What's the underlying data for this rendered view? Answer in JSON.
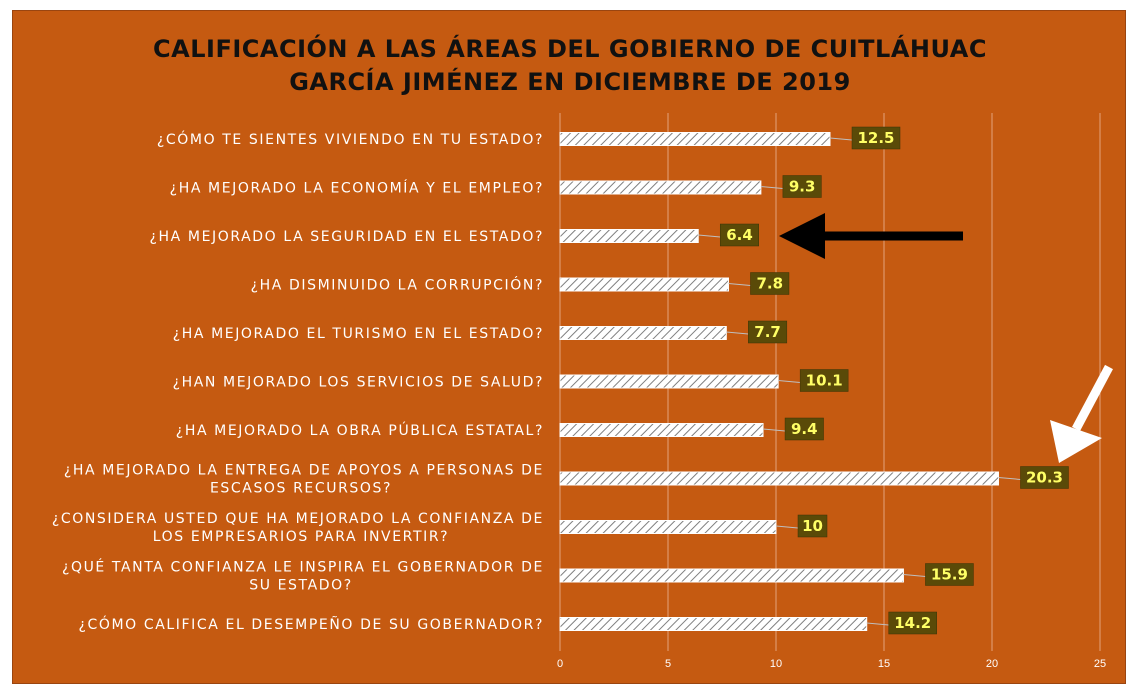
{
  "chart_data": {
    "type": "bar",
    "orientation": "horizontal",
    "title_lines": [
      "CALIFICACIÓN A LAS ÁREAS DEL GOBIERNO DE CUITLÁHUAC",
      "GARCÍA JIMÉNEZ EN DICIEMBRE DE 2019"
    ],
    "categories": [
      [
        "¿CÓMO TE SIENTES VIVIENDO EN TU ESTADO?"
      ],
      [
        "¿HA MEJORADO LA ECONOMÍA Y EL EMPLEO?"
      ],
      [
        "¿HA MEJORADO LA SEGURIDAD EN EL ESTADO?"
      ],
      [
        "¿HA DISMINUIDO LA CORRUPCIÓN?"
      ],
      [
        "¿HA MEJORADO EL TURISMO EN EL ESTADO?"
      ],
      [
        "¿HAN MEJORADO LOS SERVICIOS DE SALUD?"
      ],
      [
        "¿HA MEJORADO LA OBRA PÚBLICA ESTATAL?"
      ],
      [
        "¿HA MEJORADO LA ENTREGA DE APOYOS A PERSONAS DE",
        "ESCASOS RECURSOS?"
      ],
      [
        "¿CONSIDERA USTED QUE HA MEJORADO LA CONFIANZA DE",
        "LOS EMPRESARIOS PARA INVERTIR?"
      ],
      [
        "¿QUÉ TANTA CONFIANZA LE INSPIRA EL GOBERNADOR DE",
        "SU ESTADO?"
      ],
      [
        "¿CÓMO CALIFICA EL DESEMPEÑO DE SU GOBERNADOR?"
      ]
    ],
    "values": [
      12.5,
      9.3,
      6.4,
      7.8,
      7.7,
      10.1,
      9.4,
      20.3,
      10,
      15.9,
      14.2
    ],
    "value_labels": [
      "12.5",
      "9.3",
      "6.4",
      "7.8",
      "7.7",
      "10.1",
      "9.4",
      "20.3",
      "10",
      "15.9",
      "14.2"
    ],
    "xlim": [
      0,
      25
    ],
    "xticks": [
      "0",
      "5",
      "10",
      "15",
      "20",
      "25"
    ],
    "grid": "vertical",
    "annotations": [
      {
        "kind": "arrow",
        "color": "#000000",
        "points_to": "¿HA MEJORADO LA SEGURIDAD EN EL ESTADO?"
      },
      {
        "kind": "arrow",
        "color": "#ffffff",
        "points_to": "¿HA MEJORADO LA ENTREGA DE APOYOS A PERSONAS DE ESCASOS RECURSOS?"
      }
    ],
    "colors": {
      "background": "#c55a11",
      "bar_fill": "#ffffff",
      "bar_hatch": "#7f7f7f",
      "label_box": "#5a4a08",
      "label_text": "#ffff66"
    }
  }
}
